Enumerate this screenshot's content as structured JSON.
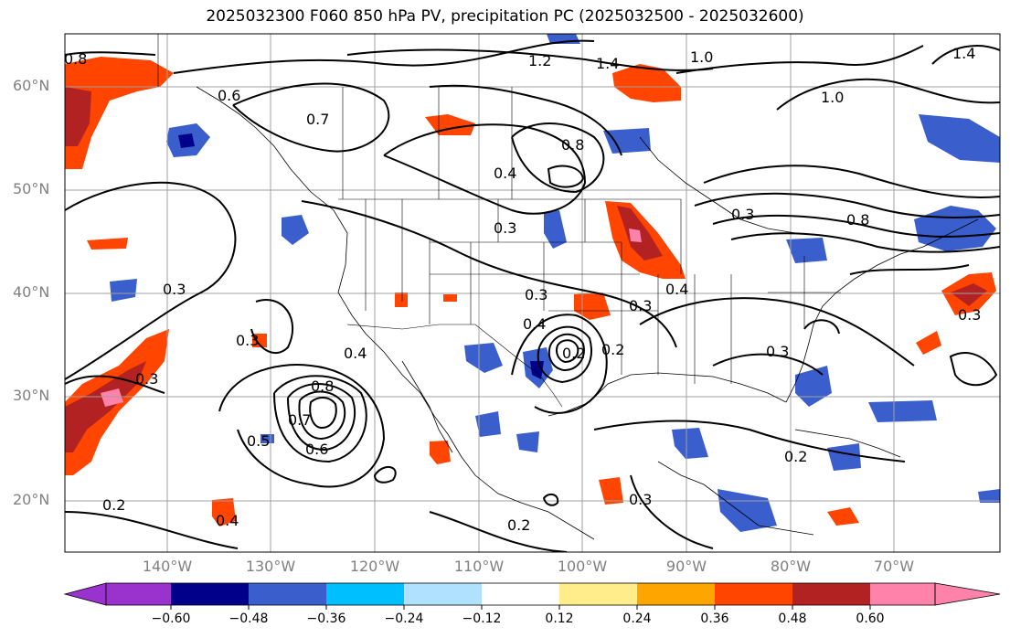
{
  "title": "2025032300 F060 850 hPa PV, precipitation PC (2025032500 - 2025032600)",
  "lat_labels": [
    "60°N",
    "50°N",
    "40°N",
    "30°N",
    "20°N"
  ],
  "lon_labels": [
    "140°W",
    "130°W",
    "120°W",
    "110°W",
    "100°W",
    "90°W",
    "80°W",
    "70°W"
  ],
  "colorbar": {
    "ticks": [
      "−0.60",
      "−0.48",
      "−0.36",
      "−0.24",
      "−0.12",
      "0.12",
      "0.24",
      "0.36",
      "0.48",
      "0.60"
    ],
    "colors": [
      "#9a32cd",
      "#00008b",
      "#3a5fcd",
      "#00bfff",
      "#b0e2ff",
      "#ffffff",
      "#ffec8b",
      "#ffa500",
      "#ff4500",
      "#b22222",
      "#ff82ab"
    ]
  },
  "contour_labels": [
    "0.8",
    "0.6",
    "0.7",
    "0.4",
    "0.3",
    "0.3",
    "0.3",
    "0.3",
    "1.2",
    "1.4",
    "1.0",
    "1.0",
    "0.8",
    "0.4",
    "0.3",
    "0.3",
    "0.4",
    "0.3",
    "0.2",
    "0.4",
    "0.8",
    "0.7",
    "0.5",
    "0.6",
    "0.3",
    "0.2",
    "0.2",
    "0.4",
    "0.2",
    "0.3",
    "0.2",
    "1.4",
    "0.8",
    "0.3"
  ]
}
